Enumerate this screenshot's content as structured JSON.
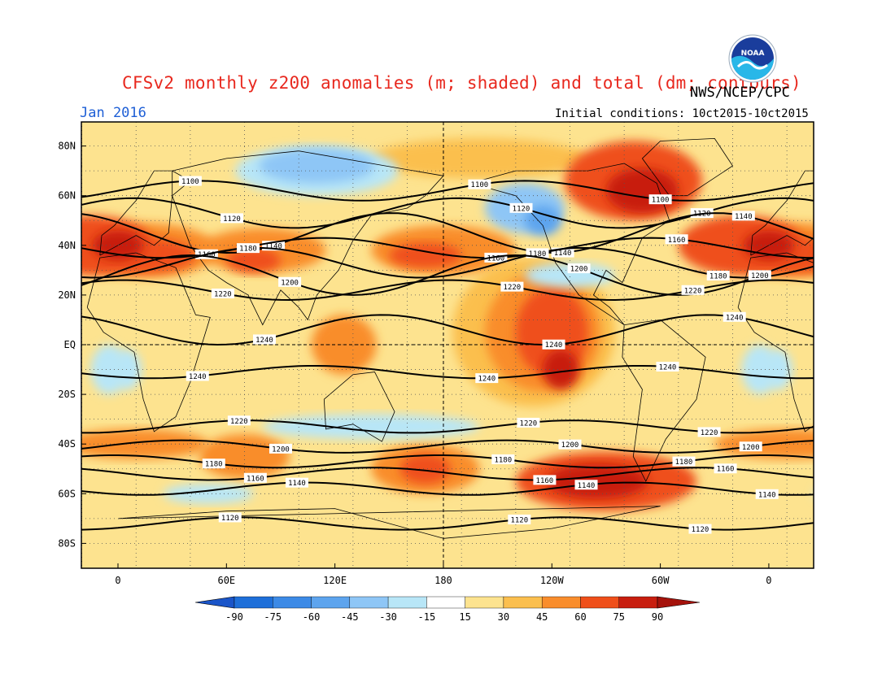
{
  "header": {
    "title": "CFSv2 monthly z200 anomalies (m; shaded) and total (dm; contours)",
    "agency": "NWS/NCEP/CPC",
    "valid_month": "Jan 2016",
    "initial_conditions": "Initial conditions: 10ct2015-10ct2015",
    "logo_text": "NOAA"
  },
  "map": {
    "lon_ticks": [
      "0",
      "60E",
      "120E",
      "180",
      "120W",
      "60W",
      "0"
    ],
    "lat_ticks": [
      "80N",
      "60N",
      "40N",
      "20N",
      "EQ",
      "20S",
      "40S",
      "60S",
      "80S"
    ],
    "contour_labels": [
      "1100",
      "1120",
      "1140",
      "1160",
      "1180",
      "1200",
      "1220",
      "1240"
    ],
    "contour_levels": [
      {
        "value": "1100",
        "lat": 62
      },
      {
        "value": "1120",
        "lat": 53
      },
      {
        "value": "1140",
        "lat": 45
      },
      {
        "value": "1160",
        "lat": 39
      },
      {
        "value": "1180",
        "lat": 33
      },
      {
        "value": "1200",
        "lat": 28
      },
      {
        "value": "1220",
        "lat": 22
      },
      {
        "value": "1240",
        "lat": 6
      },
      {
        "value": "1240",
        "lat": -11
      },
      {
        "value": "1220",
        "lat": -33
      },
      {
        "value": "1200",
        "lat": -41
      },
      {
        "value": "1180",
        "lat": -47
      },
      {
        "value": "1160",
        "lat": -52
      },
      {
        "value": "1140",
        "lat": -58
      },
      {
        "value": "1120",
        "lat": -72
      }
    ]
  },
  "colorbar": {
    "ticks": [
      "-90",
      "-75",
      "-60",
      "-45",
      "-30",
      "-15",
      "15",
      "30",
      "45",
      "60",
      "75",
      "90"
    ],
    "colors": [
      "#1e6fd9",
      "#3c8ae6",
      "#5da4ee",
      "#8ec6f6",
      "#b8e6f7",
      "#ffffff",
      "#fde38f",
      "#fbbf4e",
      "#f98d2c",
      "#ef4f1a",
      "#c81e0f"
    ],
    "end_low": "#1a55c9",
    "end_high": "#a5120b"
  },
  "colors": {
    "anom_pos_weak": "#fde38f",
    "anom_pos_mod": "#fbbf4e",
    "anom_pos_strong": "#f98d2c",
    "anom_pos_vstrong": "#ef4f1a",
    "anom_pos_max": "#c81e0f",
    "anom_neg_weak": "#b8e6f7",
    "anom_neg_mod": "#8ec6f6",
    "anom_neg_strong": "#5da4ee"
  }
}
